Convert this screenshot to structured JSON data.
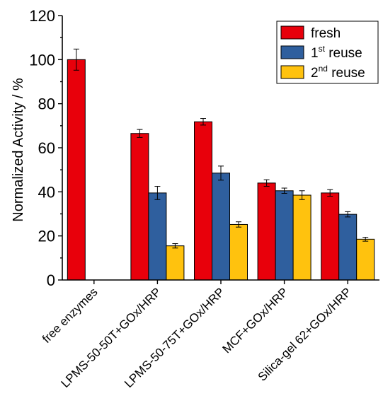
{
  "chart_data": {
    "type": "bar",
    "ylabel": "Normalized Activity / %",
    "xlabel": "",
    "ylim": [
      0,
      120
    ],
    "yticks": [
      0,
      20,
      40,
      60,
      80,
      100,
      120
    ],
    "categories": [
      "free enzymes",
      "LPMS-50-50T+GOx/HRP",
      "LPMS-50-75T+GOx/HRP",
      "MCF+GOx/HRP",
      "Silica-gel 62+GOx/HRP"
    ],
    "series": [
      {
        "name": "fresh",
        "legend_base": "",
        "legend_sup": "",
        "legend_rest": "fresh",
        "color": "#e8000b",
        "values": [
          100,
          66.5,
          71.8,
          44,
          39.5
        ],
        "errors": [
          4.8,
          1.8,
          1.5,
          1.5,
          1.5
        ]
      },
      {
        "name": "1st reuse",
        "legend_base": "1",
        "legend_sup": "st",
        "legend_rest": " reuse",
        "color": "#2f5f9e",
        "values": [
          null,
          39.5,
          48.5,
          40.5,
          29.8
        ],
        "errors": [
          null,
          3.0,
          3.2,
          1.2,
          1.2
        ]
      },
      {
        "name": "2nd reuse",
        "legend_base": "2",
        "legend_sup": "nd",
        "legend_rest": " reuse",
        "color": "#ffc20e",
        "values": [
          null,
          15.5,
          25.2,
          38.5,
          18.5
        ],
        "errors": [
          null,
          1.0,
          1.2,
          2.0,
          0.9
        ]
      }
    ],
    "legend_position": "top-right",
    "grid": false
  }
}
